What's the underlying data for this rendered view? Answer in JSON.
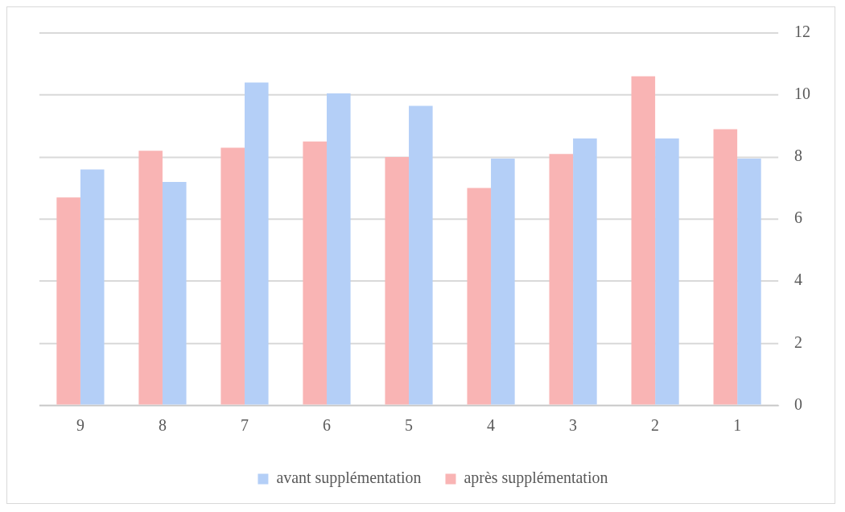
{
  "chart_data": {
    "type": "bar",
    "categories": [
      "9",
      "8",
      "7",
      "6",
      "5",
      "4",
      "3",
      "2",
      "1"
    ],
    "series": [
      {
        "name": "après supplémentation",
        "color": "#f9b4b4",
        "values": [
          6.7,
          8.2,
          8.3,
          8.5,
          8.0,
          7.0,
          8.1,
          10.6,
          8.9
        ]
      },
      {
        "name": "avant supplémentation",
        "color": "#b4cff7",
        "values": [
          7.6,
          7.2,
          10.4,
          10.05,
          9.65,
          7.95,
          8.6,
          8.6,
          7.95
        ]
      }
    ],
    "ylim": [
      0,
      12
    ],
    "yticks": [
      0,
      2,
      4,
      6,
      8,
      10,
      12
    ],
    "grid": "y",
    "legend": "bottom"
  }
}
